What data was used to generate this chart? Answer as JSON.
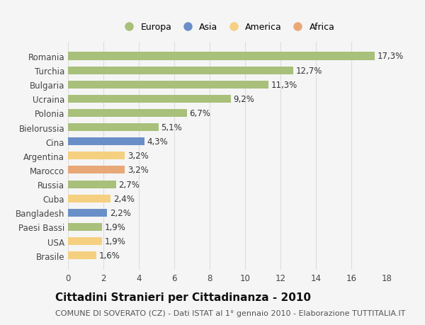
{
  "countries": [
    "Brasile",
    "USA",
    "Paesi Bassi",
    "Bangladesh",
    "Cuba",
    "Russia",
    "Marocco",
    "Argentina",
    "Cina",
    "Bielorussia",
    "Polonia",
    "Ucraina",
    "Bulgaria",
    "Turchia",
    "Romania"
  ],
  "values": [
    1.6,
    1.9,
    1.9,
    2.2,
    2.4,
    2.7,
    3.2,
    3.2,
    4.3,
    5.1,
    6.7,
    9.2,
    11.3,
    12.7,
    17.3
  ],
  "continents": [
    "America",
    "America",
    "Europa",
    "Asia",
    "America",
    "Europa",
    "Africa",
    "America",
    "Asia",
    "Europa",
    "Europa",
    "Europa",
    "Europa",
    "Europa",
    "Europa"
  ],
  "colors": {
    "Europa": "#a8c07a",
    "Asia": "#6a8fc8",
    "America": "#f5d080",
    "Africa": "#e8a878"
  },
  "legend_order": [
    "Europa",
    "Asia",
    "America",
    "Africa"
  ],
  "title": "Cittadini Stranieri per Cittadinanza - 2010",
  "subtitle": "COMUNE DI SOVERATO (CZ) - Dati ISTAT al 1° gennaio 2010 - Elaborazione TUTTITALIA.IT",
  "xlim": [
    0,
    18
  ],
  "xticks": [
    0,
    2,
    4,
    6,
    8,
    10,
    12,
    14,
    16,
    18
  ],
  "background_color": "#f5f5f5",
  "grid_color": "#dddddd",
  "bar_height": 0.55,
  "title_fontsize": 11,
  "subtitle_fontsize": 8,
  "label_fontsize": 8.5,
  "tick_fontsize": 8.5,
  "legend_fontsize": 9
}
